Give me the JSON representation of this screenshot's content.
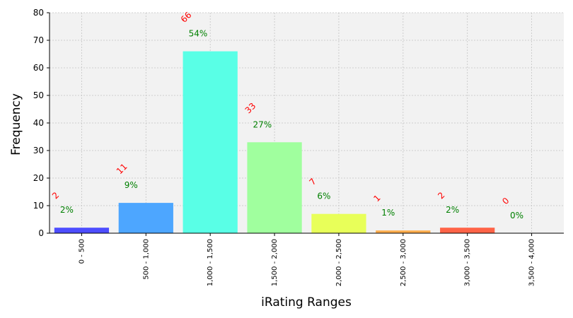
{
  "chart_data": {
    "type": "bar",
    "title": "",
    "xlabel": "iRating Ranges",
    "ylabel": "Frequency",
    "ylim": [
      0,
      80
    ],
    "yticks": [
      0,
      10,
      20,
      30,
      40,
      50,
      60,
      70,
      80
    ],
    "grid": true,
    "categories": [
      "0 - 500",
      "500 - 1,000",
      "1,000 - 1,500",
      "1,500 - 2,000",
      "2,000 - 2,500",
      "2,500 - 3,000",
      "3,000 - 3,500",
      "3,500 - 4,000"
    ],
    "values": [
      2,
      11,
      66,
      33,
      7,
      1,
      2,
      0
    ],
    "percent_labels": [
      "2%",
      "9%",
      "54%",
      "27%",
      "6%",
      "1%",
      "2%",
      "0%"
    ],
    "count_labels": [
      "2",
      "11",
      "66",
      "33",
      "7",
      "1",
      "2",
      "0"
    ],
    "bar_colors": [
      "#4d4dff",
      "#4da6ff",
      "#59ffe6",
      "#a0ff9e",
      "#e8ff59",
      "#ffad4d",
      "#ff6347",
      "#ff2a2a"
    ],
    "count_label_color": "#ff0000",
    "percent_label_color": "#008000",
    "plot_background": "#f2f2f2"
  }
}
